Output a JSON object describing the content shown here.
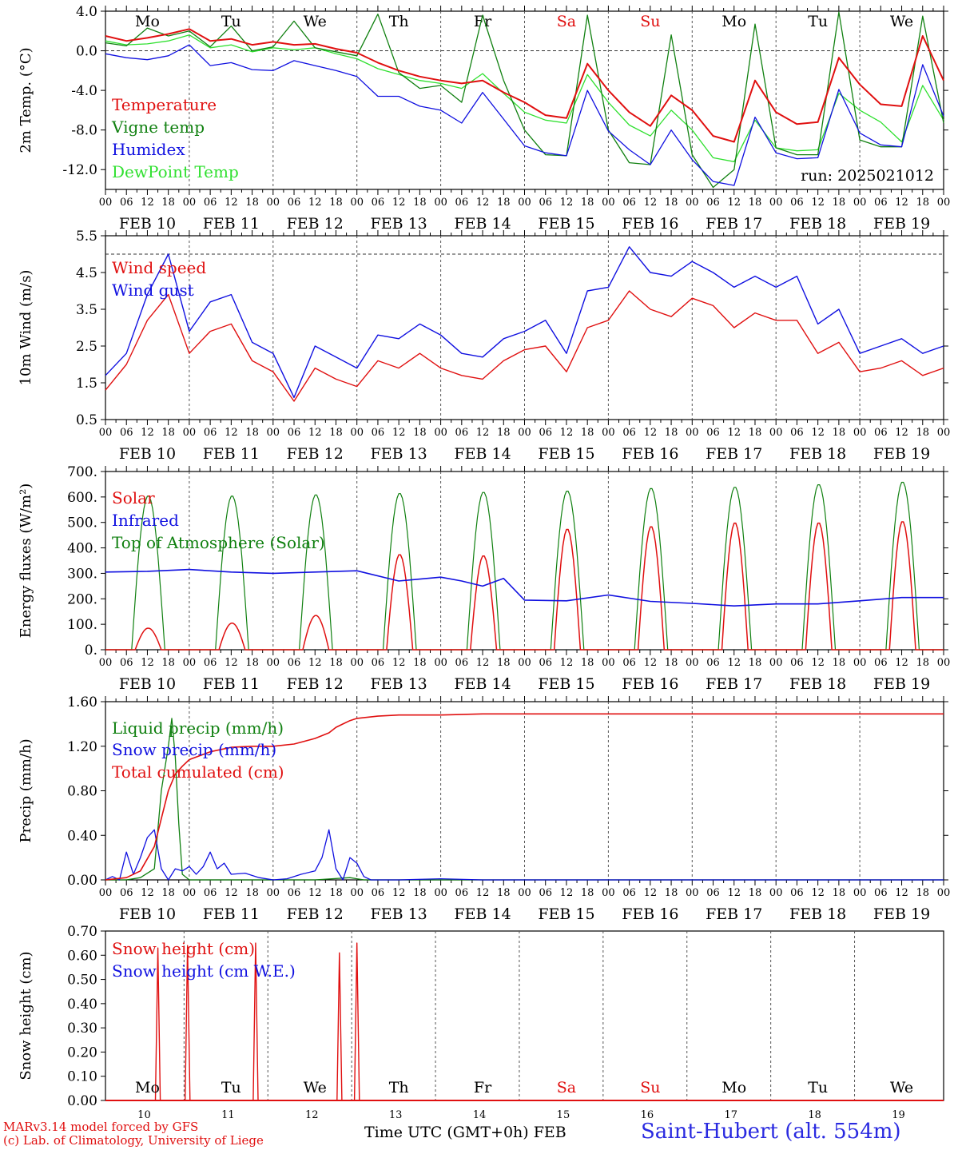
{
  "footer": {
    "model": "MARv3.14 model forced by GFS",
    "credit": "(c) Lab. of Climatology, University of Liege",
    "time_axis": "Time UTC (GMT+0h)",
    "month": "FEB",
    "station": "Saint-Hubert (alt. 554m)"
  },
  "colors": {
    "red": "#e01010",
    "green": "#108010",
    "blue": "#1010e0",
    "lightgreen": "#30e030",
    "weekend": "#e01010"
  },
  "chart_data": [
    {
      "type": "line",
      "ylabel": "2m Temp. (°C)",
      "ylim": [
        -14,
        4
      ],
      "yticks": [
        "4.0",
        "0.0",
        "-4.0",
        "-8.0",
        "-12.0"
      ],
      "annotation": "run: 2025021012",
      "xlim": [
        0,
        240
      ],
      "hour_ticks": [
        "00",
        "06",
        "12",
        "18"
      ],
      "dates": [
        "FEB 10",
        "FEB 11",
        "FEB 12",
        "FEB 13",
        "FEB 14",
        "FEB 15",
        "FEB 16",
        "FEB 17",
        "FEB 18",
        "FEB 19"
      ],
      "weekdays": [
        "Mo",
        "Tu",
        "We",
        "Th",
        "Fr",
        "Sa",
        "Su",
        "Mo",
        "Tu",
        "We"
      ],
      "series": [
        {
          "name": "Temperature",
          "color": "red",
          "x": [
            0,
            6,
            12,
            18,
            24,
            30,
            36,
            42,
            48,
            54,
            60,
            66,
            72,
            78,
            84,
            90,
            96,
            102,
            108,
            114,
            120,
            126,
            132,
            138,
            144,
            150,
            156,
            162,
            168,
            174,
            180,
            186,
            192,
            198,
            204,
            210,
            216,
            222,
            228,
            234,
            240
          ],
          "y": [
            1.5,
            1.0,
            1.3,
            1.7,
            2.2,
            1.0,
            1.2,
            0.6,
            0.9,
            0.6,
            0.7,
            0.2,
            -0.2,
            -1.2,
            -2.0,
            -2.6,
            -3.0,
            -3.3,
            -3.0,
            -4.2,
            -5.2,
            -6.5,
            -6.8,
            -1.3,
            -4.0,
            -6.2,
            -7.6,
            -4.5,
            -6.0,
            -8.6,
            -9.2,
            -3.0,
            -6.2,
            -7.4,
            -7.2,
            -0.7,
            -3.4,
            -5.4,
            -5.6,
            1.5,
            -3.0
          ]
        },
        {
          "name": "Vigne temp",
          "color": "green",
          "x": [
            0,
            6,
            12,
            18,
            24,
            30,
            36,
            42,
            48,
            54,
            60,
            66,
            72,
            78,
            84,
            90,
            96,
            102,
            108,
            114,
            120,
            126,
            132,
            138,
            144,
            150,
            156,
            162,
            168,
            174,
            180,
            186,
            192,
            198,
            204,
            210,
            216,
            222,
            228,
            234,
            240
          ],
          "y": [
            0.8,
            0.5,
            2.3,
            1.5,
            2.0,
            0.4,
            2.5,
            0.0,
            0.4,
            3.0,
            0.3,
            -0.1,
            -0.5,
            3.7,
            -2.2,
            -3.8,
            -3.5,
            -5.2,
            3.6,
            -3.0,
            -8.0,
            -10.5,
            -10.6,
            3.6,
            -8.0,
            -11.3,
            -11.5,
            1.6,
            -10.5,
            -13.8,
            -12.0,
            2.7,
            -9.8,
            -10.5,
            -10.5,
            3.9,
            -9.0,
            -9.7,
            -9.7,
            3.5,
            -7.3
          ]
        },
        {
          "name": "Humidex",
          "color": "blue",
          "x": [
            0,
            6,
            12,
            18,
            24,
            30,
            36,
            42,
            48,
            54,
            60,
            66,
            72,
            78,
            84,
            90,
            96,
            102,
            108,
            114,
            120,
            126,
            132,
            138,
            144,
            150,
            156,
            162,
            168,
            174,
            180,
            186,
            192,
            198,
            204,
            210,
            216,
            222,
            228,
            234,
            240
          ],
          "y": [
            -0.3,
            -0.7,
            -0.9,
            -0.5,
            0.6,
            -1.5,
            -1.2,
            -1.9,
            -2.0,
            -1.0,
            -1.5,
            -2.0,
            -2.6,
            -4.6,
            -4.6,
            -5.6,
            -6.0,
            -7.3,
            -4.2,
            -6.9,
            -9.6,
            -10.3,
            -10.6,
            -4.0,
            -8.1,
            -10.0,
            -11.5,
            -8.0,
            -11.0,
            -13.2,
            -13.6,
            -6.7,
            -10.3,
            -10.9,
            -10.8,
            -3.9,
            -8.3,
            -9.5,
            -9.7,
            -1.4,
            -6.6
          ]
        },
        {
          "name": "DewPoint Temp",
          "color": "lightgreen",
          "x": [
            0,
            6,
            12,
            18,
            24,
            30,
            36,
            42,
            48,
            54,
            60,
            66,
            72,
            78,
            84,
            90,
            96,
            102,
            108,
            114,
            120,
            126,
            132,
            138,
            144,
            150,
            156,
            162,
            168,
            174,
            180,
            186,
            192,
            198,
            204,
            210,
            216,
            222,
            228,
            234,
            240
          ],
          "y": [
            1.0,
            0.6,
            0.7,
            1.0,
            1.6,
            0.3,
            0.6,
            -0.1,
            0.3,
            0.1,
            0.3,
            -0.3,
            -0.8,
            -1.8,
            -2.4,
            -3.0,
            -3.3,
            -3.8,
            -2.3,
            -4.3,
            -6.2,
            -7.0,
            -7.3,
            -2.4,
            -5.2,
            -7.5,
            -8.6,
            -6.0,
            -8.0,
            -10.8,
            -11.2,
            -7.0,
            -9.8,
            -10.1,
            -10.0,
            -4.3,
            -6.0,
            -7.2,
            -9.2,
            -3.5,
            -7.0
          ]
        }
      ]
    },
    {
      "type": "line",
      "ylabel": "10m Wind (m/s)",
      "ylim": [
        0.5,
        5.5
      ],
      "yticks": [
        "5.5",
        "4.5",
        "3.5",
        "2.5",
        "1.5",
        "0.5"
      ],
      "xlim": [
        0,
        240
      ],
      "dates": [
        "FEB 10",
        "FEB 11",
        "FEB 12",
        "FEB 13",
        "FEB 14",
        "FEB 15",
        "FEB 16",
        "FEB 17",
        "FEB 18",
        "FEB 19"
      ],
      "series": [
        {
          "name": "Wind speed",
          "color": "red",
          "x": [
            0,
            6,
            12,
            18,
            24,
            30,
            36,
            42,
            48,
            54,
            60,
            66,
            72,
            78,
            84,
            90,
            96,
            102,
            108,
            114,
            120,
            126,
            132,
            138,
            144,
            150,
            156,
            162,
            168,
            174,
            180,
            186,
            192,
            198,
            204,
            210,
            216,
            222,
            228,
            234,
            240
          ],
          "y": [
            1.3,
            2.0,
            3.2,
            3.9,
            2.3,
            2.9,
            3.1,
            2.1,
            1.8,
            1.0,
            1.9,
            1.6,
            1.4,
            2.1,
            1.9,
            2.3,
            1.9,
            1.7,
            1.6,
            2.1,
            2.4,
            2.5,
            1.8,
            3.0,
            3.2,
            4.0,
            3.5,
            3.3,
            3.8,
            3.6,
            3.0,
            3.4,
            3.2,
            3.2,
            2.3,
            2.6,
            1.8,
            1.9,
            2.1,
            1.7,
            1.9
          ]
        },
        {
          "name": "Wind gust",
          "color": "blue",
          "x": [
            0,
            6,
            12,
            18,
            24,
            30,
            36,
            42,
            48,
            54,
            60,
            66,
            72,
            78,
            84,
            90,
            96,
            102,
            108,
            114,
            120,
            126,
            132,
            138,
            144,
            150,
            156,
            162,
            168,
            174,
            180,
            186,
            192,
            198,
            204,
            210,
            216,
            222,
            228,
            234,
            240
          ],
          "y": [
            1.7,
            2.3,
            3.9,
            5.0,
            2.9,
            3.7,
            3.9,
            2.6,
            2.3,
            1.1,
            2.5,
            2.2,
            1.9,
            2.8,
            2.7,
            3.1,
            2.8,
            2.3,
            2.2,
            2.7,
            2.9,
            3.2,
            2.3,
            4.0,
            4.1,
            5.2,
            4.5,
            4.4,
            4.8,
            4.5,
            4.1,
            4.4,
            4.1,
            4.4,
            3.1,
            3.5,
            2.3,
            2.5,
            2.7,
            2.3,
            2.5
          ]
        }
      ]
    },
    {
      "type": "line",
      "ylabel": "Energy fluxes (W/m²)",
      "ylim": [
        0,
        700
      ],
      "yticks": [
        "700.",
        "600.",
        "500.",
        "400.",
        "300.",
        "200.",
        "100.",
        "0."
      ],
      "xlim": [
        0,
        240
      ],
      "dates": [
        "FEB 10",
        "FEB 11",
        "FEB 12",
        "FEB 13",
        "FEB 14",
        "FEB 15",
        "FEB 16",
        "FEB 17",
        "FEB 18",
        "FEB 19"
      ],
      "diurnal": {
        "solar_peaks": [
          85,
          105,
          135,
          375,
          370,
          475,
          485,
          500,
          500,
          505
        ],
        "toa_peaks": [
          605,
          605,
          610,
          615,
          620,
          625,
          635,
          640,
          650,
          660
        ]
      },
      "series": [
        {
          "name": "Solar",
          "color": "red"
        },
        {
          "name": "Infrared",
          "color": "blue",
          "x": [
            0,
            12,
            24,
            36,
            48,
            60,
            72,
            84,
            96,
            102,
            108,
            114,
            120,
            132,
            144,
            156,
            168,
            180,
            192,
            204,
            216,
            228,
            240
          ],
          "y": [
            305,
            308,
            315,
            305,
            300,
            305,
            310,
            270,
            285,
            270,
            250,
            280,
            195,
            192,
            215,
            190,
            182,
            172,
            180,
            180,
            192,
            205,
            205
          ]
        },
        {
          "name": "Top of Atmosphere (Solar)",
          "color": "green"
        }
      ]
    },
    {
      "type": "line",
      "ylabel": "Precip (mm/h)",
      "ylim": [
        0,
        1.6
      ],
      "yticks": [
        "1.60",
        "1.20",
        "0.80",
        "0.40",
        "0.00"
      ],
      "xlim": [
        0,
        240
      ],
      "dates": [
        "FEB 10",
        "FEB 11",
        "FEB 12",
        "FEB 13",
        "FEB 14",
        "FEB 15",
        "FEB 16",
        "FEB 17",
        "FEB 18",
        "FEB 19"
      ],
      "series": [
        {
          "name": "Liquid precip (mm/h)",
          "color": "green",
          "x": [
            0,
            6,
            10,
            14,
            16,
            18,
            19,
            20,
            21,
            22,
            24,
            28,
            36,
            48,
            60,
            70,
            72,
            74,
            240
          ],
          "y": [
            0,
            0,
            0.02,
            0.1,
            0.8,
            1.2,
            1.45,
            1.1,
            0.5,
            0.05,
            0,
            0,
            0,
            0,
            0,
            0.02,
            0.01,
            0,
            0
          ]
        },
        {
          "name": "Snow precip (mm/h)",
          "color": "blue",
          "x": [
            0,
            2,
            4,
            6,
            8,
            10,
            12,
            14,
            16,
            18,
            20,
            22,
            24,
            26,
            28,
            30,
            32,
            34,
            36,
            40,
            44,
            48,
            52,
            56,
            60,
            62,
            64,
            66,
            68,
            70,
            72,
            74,
            76,
            78,
            84,
            96,
            108,
            120,
            240
          ],
          "y": [
            0,
            0.03,
            0,
            0.25,
            0.05,
            0.2,
            0.38,
            0.45,
            0.1,
            0,
            0.1,
            0.08,
            0.12,
            0.05,
            0.12,
            0.25,
            0.1,
            0.15,
            0.05,
            0.06,
            0.02,
            0,
            0.01,
            0.05,
            0.08,
            0.2,
            0.45,
            0.1,
            0.0,
            0.2,
            0.15,
            0.03,
            0,
            0,
            0,
            0.01,
            0,
            0,
            0
          ]
        },
        {
          "name": "Total cumulated (cm)",
          "color": "red",
          "x": [
            0,
            6,
            10,
            14,
            16,
            18,
            20,
            22,
            24,
            30,
            36,
            42,
            48,
            54,
            60,
            64,
            66,
            68,
            70,
            72,
            78,
            84,
            96,
            108,
            120,
            180,
            240
          ],
          "y": [
            0,
            0.02,
            0.08,
            0.3,
            0.55,
            0.8,
            0.95,
            1.02,
            1.08,
            1.15,
            1.19,
            1.2,
            1.2,
            1.22,
            1.27,
            1.32,
            1.37,
            1.4,
            1.43,
            1.45,
            1.47,
            1.48,
            1.48,
            1.49,
            1.49,
            1.49,
            1.49
          ]
        }
      ]
    },
    {
      "type": "line",
      "ylabel": "Snow height (cm)",
      "ylim": [
        0,
        0.7
      ],
      "yticks": [
        "0.70",
        "0.60",
        "0.50",
        "0.40",
        "0.30",
        "0.20",
        "0.10",
        "0.00"
      ],
      "xlim": [
        0,
        240
      ],
      "day_numbers": [
        "10",
        "11",
        "12",
        "13",
        "14",
        "15",
        "16",
        "17",
        "18",
        "19"
      ],
      "weekdays": [
        "Mo",
        "Tu",
        "We",
        "Th",
        "Fr",
        "Sa",
        "Su",
        "Mo",
        "Tu",
        "We"
      ],
      "spikes": [
        {
          "x": 15,
          "y": 0.63
        },
        {
          "x": 23.5,
          "y": 0.64
        },
        {
          "x": 43,
          "y": 0.65
        },
        {
          "x": 67,
          "y": 0.61
        },
        {
          "x": 72,
          "y": 0.65
        }
      ],
      "series": [
        {
          "name": "Snow height (cm)",
          "color": "red"
        },
        {
          "name": "Snow height (cm W.E.)",
          "color": "blue"
        }
      ]
    }
  ]
}
